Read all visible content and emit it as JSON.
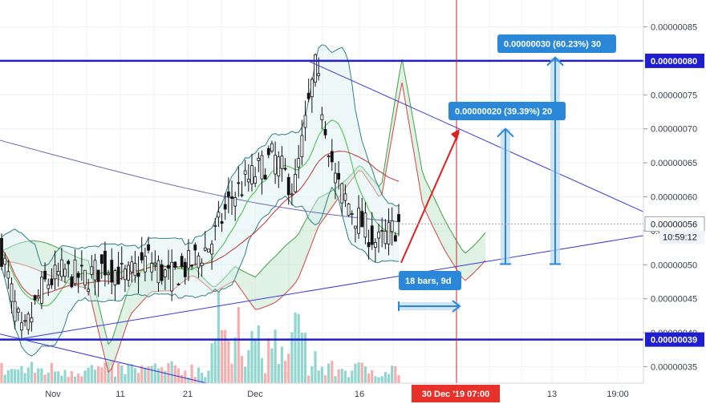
{
  "chart_data": {
    "type": "candlestick",
    "symbol_scale": "price",
    "ylim": [
      3.3e-07,
      9e-07
    ],
    "y_ticks": [
      "0.00000035",
      "0.00000040",
      "0.00000045",
      "0.00000050",
      "0.00000055",
      "0.00000060",
      "0.00000065",
      "0.00000070",
      "0.00000075",
      "0.00000080",
      "0.00000085"
    ],
    "x_ticks": [
      "Nov",
      "11",
      "21",
      "Dec",
      "16",
      "13",
      "19:00"
    ],
    "x_highlight_label": "30 Dec '19   07:00",
    "grid": true,
    "horizontal_levels": [
      {
        "price": 8e-07,
        "label": "0.00000080"
      },
      {
        "price": 3.9e-07,
        "label": "0.00000039"
      }
    ],
    "current_price_label": "0.00000056",
    "countdown_label": "10:59:12",
    "annotations": [
      {
        "kind": "target-box",
        "text": "0.00000030 (60.23%) 30"
      },
      {
        "kind": "target-box",
        "text": "0.00000020 (39.39%) 20"
      },
      {
        "kind": "range-box",
        "text": "18 bars, 9d"
      }
    ],
    "candles_approx": [
      {
        "day": 0,
        "price": 5.2e-07
      },
      {
        "day": 5,
        "price": 3.9e-07
      },
      {
        "day": 10,
        "price": 4.7e-07
      },
      {
        "day": 15,
        "price": 4.9e-07
      },
      {
        "day": 20,
        "price": 4.8e-07
      },
      {
        "day": 25,
        "price": 5e-07
      },
      {
        "day": 30,
        "price": 4.8e-07
      },
      {
        "day": 35,
        "price": 5.1e-07
      },
      {
        "day": 40,
        "price": 4.8e-07
      },
      {
        "day": 45,
        "price": 5e-07
      },
      {
        "day": 50,
        "price": 5.3e-07
      },
      {
        "day": 55,
        "price": 6e-07
      },
      {
        "day": 60,
        "price": 6.3e-07
      },
      {
        "day": 65,
        "price": 6.6e-07
      },
      {
        "day": 70,
        "price": 6.1e-07
      },
      {
        "day": 75,
        "price": 7.9e-07
      },
      {
        "day": 80,
        "price": 6.2e-07
      },
      {
        "day": 85,
        "price": 5.7e-07
      },
      {
        "day": 90,
        "price": 5.3e-07
      },
      {
        "day": 95,
        "price": 5.6e-07
      }
    ]
  },
  "colors": {
    "grid": "#eef0f4",
    "level_line": "#1f1fd1",
    "trend_line": "#3a3ad6",
    "highlight_axis": "#e8312b",
    "label_blue": "#2b88d8",
    "up_candle": "#111111",
    "volume_up": "#7fcfc7",
    "volume_down": "#f4a1a1"
  }
}
